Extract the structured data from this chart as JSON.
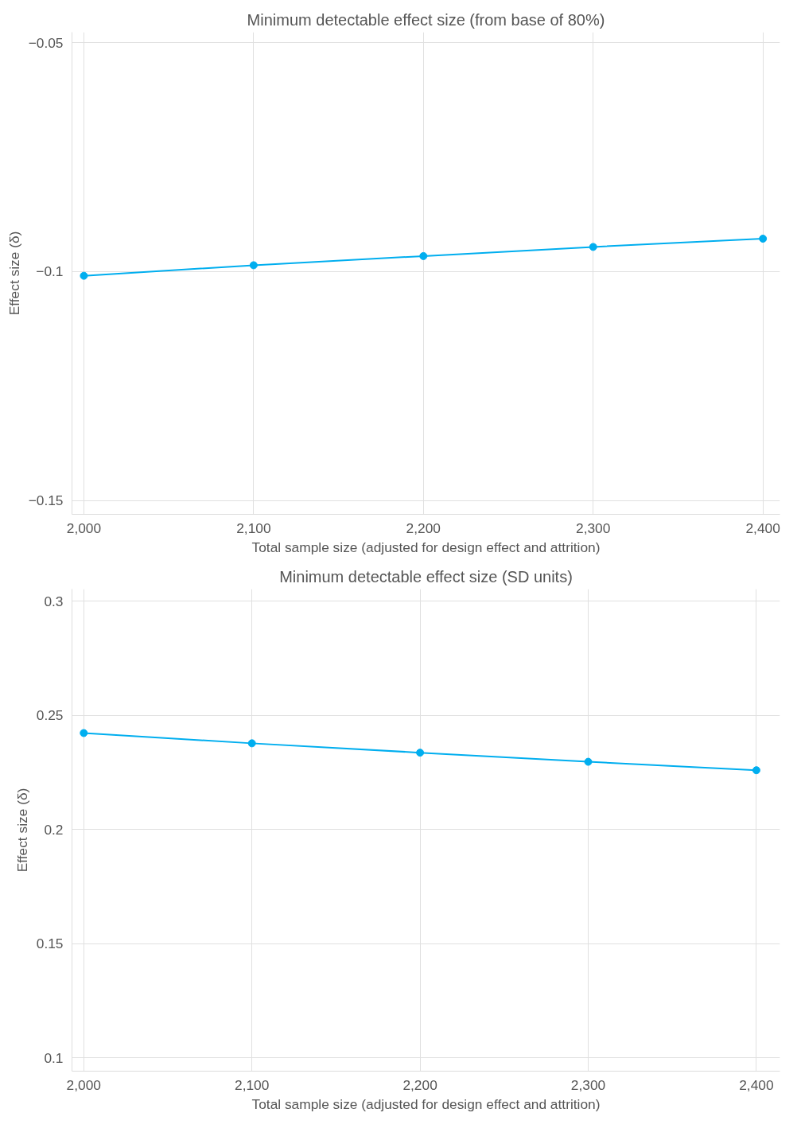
{
  "chart_data": [
    {
      "type": "line",
      "title": "Minimum detectable effect size (from base of 80%)",
      "xlabel": "Total sample size (adjusted for design effect and attrition)",
      "ylabel": "Effect size (δ)",
      "x": [
        2000,
        2100,
        2200,
        2300,
        2400
      ],
      "series": [
        {
          "color": "#00aeef",
          "values": [
            -0.1009,
            -0.0986,
            -0.0966,
            -0.0946,
            -0.0928
          ]
        }
      ],
      "xlim": [
        1993,
        2410
      ],
      "ylim": [
        -0.153,
        -0.0477
      ],
      "xticks": [
        {
          "value": 2000,
          "label": "2,000"
        },
        {
          "value": 2100,
          "label": "2,100"
        },
        {
          "value": 2200,
          "label": "2,200"
        },
        {
          "value": 2300,
          "label": "2,300"
        },
        {
          "value": 2400,
          "label": "2,400"
        }
      ],
      "yticks": [
        {
          "value": -0.15,
          "label": "−0.15"
        },
        {
          "value": -0.1,
          "label": "−0.1"
        },
        {
          "value": -0.05,
          "label": "−0.05"
        }
      ],
      "grid": true,
      "marker": "circle",
      "line_style": "solid"
    },
    {
      "type": "line",
      "title": "Minimum detectable effect size (SD units)",
      "xlabel": "Total sample size (adjusted for design effect and attrition)",
      "ylabel": "Effect size (δ)",
      "x": [
        2000,
        2100,
        2200,
        2300,
        2400
      ],
      "series": [
        {
          "color": "#00aeef",
          "values": [
            0.2423,
            0.2378,
            0.2337,
            0.2297,
            0.226
          ]
        }
      ],
      "xlim": [
        1993,
        2414
      ],
      "ylim": [
        0.0941,
        0.3054
      ],
      "xticks": [
        {
          "value": 2000,
          "label": "2,000"
        },
        {
          "value": 2100,
          "label": "2,100"
        },
        {
          "value": 2200,
          "label": "2,200"
        },
        {
          "value": 2300,
          "label": "2,300"
        },
        {
          "value": 2400,
          "label": "2,400"
        }
      ],
      "yticks": [
        0.1,
        0.15,
        0.2,
        0.25,
        0.3
      ],
      "grid": true,
      "marker": "circle",
      "line_style": "solid"
    }
  ]
}
